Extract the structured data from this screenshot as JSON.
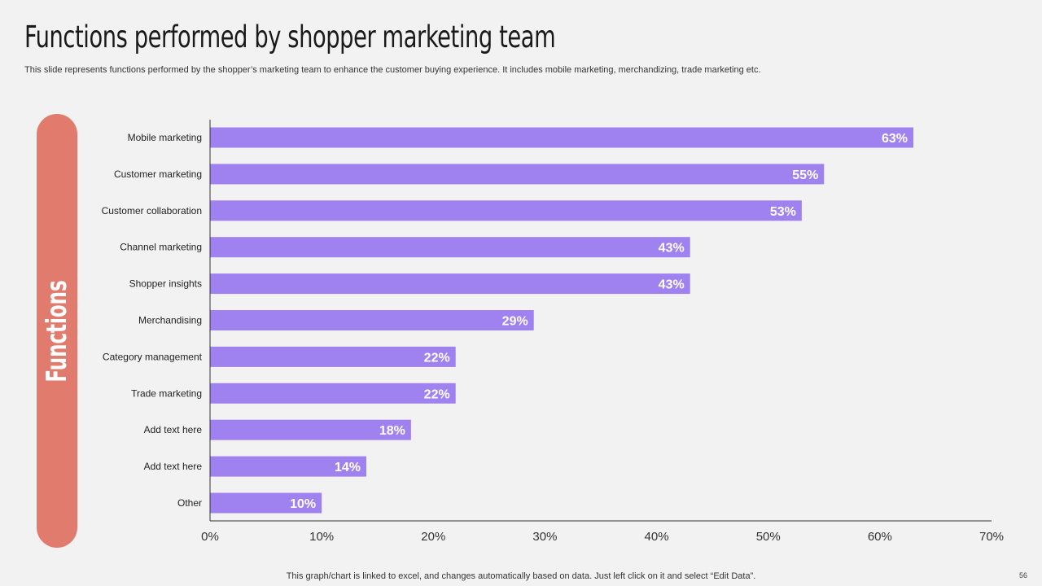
{
  "slide": {
    "title": "Functions performed by shopper marketing team",
    "subtitle": "This slide represents functions performed by the shopper’s marketing team to enhance the customer buying experience. It includes mobile marketing, merchandizing, trade marketing etc.",
    "side_label": "Functions",
    "footnote": "This graph/chart is linked to excel, and changes automatically based on data. Just left click on it and select “Edit Data”.",
    "page_number": "56"
  },
  "colors": {
    "bar": "#a081f0",
    "pill": "#e07b6d",
    "axis": "#333333"
  },
  "chart_data": {
    "type": "bar",
    "orientation": "horizontal",
    "categories": [
      "Mobile marketing",
      "Customer marketing",
      "Customer collaboration",
      "Channel marketing",
      "Shopper insights",
      "Merchandising",
      "Category management",
      "Trade marketing",
      "Add text here",
      "Add text here",
      "Other"
    ],
    "values": [
      63,
      55,
      53,
      43,
      43,
      29,
      22,
      22,
      18,
      14,
      10
    ],
    "value_labels": [
      "63%",
      "55%",
      "53%",
      "43%",
      "43%",
      "29%",
      "22%",
      "22%",
      "18%",
      "14%",
      "10%"
    ],
    "x_ticks": [
      0,
      10,
      20,
      30,
      40,
      50,
      60,
      70
    ],
    "x_tick_labels": [
      "0%",
      "10%",
      "20%",
      "30%",
      "40%",
      "50%",
      "60%",
      "70%"
    ],
    "xlim": [
      0,
      70
    ],
    "grid": false,
    "legend": "none"
  }
}
